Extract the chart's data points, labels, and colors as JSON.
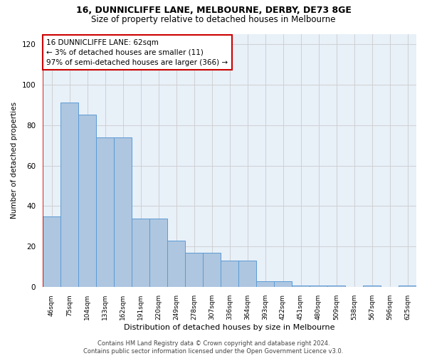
{
  "title": "16, DUNNICLIFFE LANE, MELBOURNE, DERBY, DE73 8GE",
  "subtitle": "Size of property relative to detached houses in Melbourne",
  "xlabel": "Distribution of detached houses by size in Melbourne",
  "ylabel": "Number of detached properties",
  "bar_labels": [
    "46sqm",
    "75sqm",
    "104sqm",
    "133sqm",
    "162sqm",
    "191sqm",
    "220sqm",
    "249sqm",
    "278sqm",
    "307sqm",
    "336sqm",
    "364sqm",
    "393sqm",
    "422sqm",
    "451sqm",
    "480sqm",
    "509sqm",
    "538sqm",
    "567sqm",
    "596sqm",
    "625sqm"
  ],
  "bar_values": [
    35,
    91,
    85,
    74,
    74,
    34,
    34,
    23,
    17,
    17,
    13,
    13,
    3,
    3,
    1,
    1,
    1,
    0,
    1,
    0,
    1
  ],
  "bar_color": "#aec6e0",
  "bar_edge_color": "#5b9bd5",
  "annotation_text": "16 DUNNICLIFFE LANE: 62sqm\n← 3% of detached houses are smaller (11)\n97% of semi-detached houses are larger (366) →",
  "annotation_box_color": "#ffffff",
  "annotation_box_edge_color": "#cc0000",
  "vline_color": "#cc0000",
  "ylim": [
    0,
    125
  ],
  "yticks": [
    0,
    20,
    40,
    60,
    80,
    100,
    120
  ],
  "grid_color": "#cccccc",
  "bg_color": "#e8f0f8",
  "footnote": "Contains HM Land Registry data © Crown copyright and database right 2024.\nContains public sector information licensed under the Open Government Licence v3.0.",
  "title_fontsize": 9,
  "subtitle_fontsize": 8.5
}
